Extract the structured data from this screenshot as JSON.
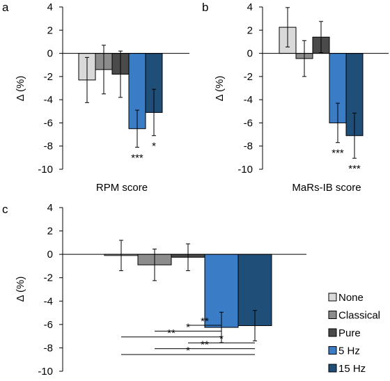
{
  "series_colors": {
    "None": "#d9d9d9",
    "Classical": "#8c8c8c",
    "Pure": "#4a4a4a",
    "5 Hz": "#3a7cc6",
    "15 Hz": "#1f4e79"
  },
  "chart_data": [
    {
      "type": "bar",
      "panel": "a",
      "xlabel": "RPM score",
      "ylabel": "Δ (%)",
      "ylim": [
        -10,
        4
      ],
      "yticks": [
        4,
        2,
        0,
        -2,
        -4,
        -6,
        -8,
        -10
      ],
      "categories": [
        "None",
        "Classical",
        "Pure",
        "5 Hz",
        "15 Hz"
      ],
      "values": [
        -2.3,
        -1.4,
        -1.8,
        -6.5,
        -5.1
      ],
      "errors": [
        1.95,
        2.1,
        2.0,
        1.6,
        2.0
      ],
      "significance": [
        "",
        "",
        "",
        "***",
        "*"
      ]
    },
    {
      "type": "bar",
      "panel": "b",
      "xlabel": "MaRs-IB score",
      "ylabel": "Δ (%)",
      "ylim": [
        -10,
        4
      ],
      "yticks": [
        4,
        2,
        0,
        -2,
        -4,
        -6,
        -8,
        -10
      ],
      "categories": [
        "None",
        "Classical",
        "Pure",
        "5 Hz",
        "15 Hz"
      ],
      "values": [
        2.25,
        -0.45,
        1.4,
        -6.0,
        -7.1
      ],
      "errors": [
        1.7,
        1.55,
        1.35,
        1.7,
        1.95
      ],
      "significance": [
        "",
        "",
        "",
        "***",
        "***"
      ]
    },
    {
      "type": "bar",
      "panel": "c",
      "ylabel": "Δ (%)",
      "ylim": [
        -10,
        4
      ],
      "yticks": [
        4,
        2,
        0,
        -2,
        -4,
        -6,
        -8,
        -10
      ],
      "categories": [
        "None",
        "Classical",
        "Pure",
        "5 Hz",
        "15 Hz"
      ],
      "values": [
        -0.1,
        -0.9,
        -0.25,
        -6.25,
        -6.1
      ],
      "errors": [
        1.3,
        1.35,
        1.15,
        1.3,
        1.3
      ],
      "comparisons": [
        {
          "from": "Pure",
          "to": "5 Hz",
          "label": "**"
        },
        {
          "from": "Classical",
          "to": "5 Hz",
          "label": "*"
        },
        {
          "from": "None",
          "to": "5 Hz",
          "label": "**"
        },
        {
          "from": "Pure",
          "to": "15 Hz",
          "label": "*"
        },
        {
          "from": "Classical",
          "to": "15 Hz",
          "label": "**"
        },
        {
          "from": "None",
          "to": "15 Hz",
          "label": "*"
        }
      ],
      "legend": {
        "position": "right",
        "entries": [
          "None",
          "Classical",
          "Pure",
          "5 Hz",
          "15 Hz"
        ]
      }
    }
  ]
}
